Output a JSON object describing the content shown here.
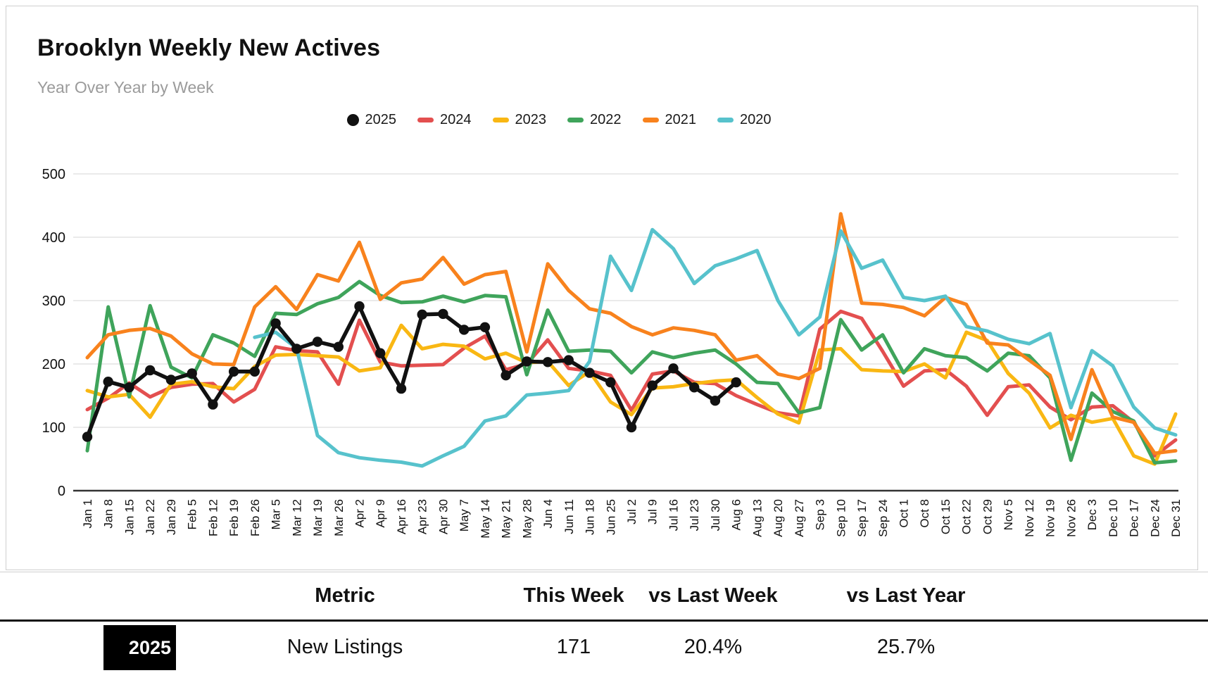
{
  "chart_data": {
    "type": "line",
    "title": "Brooklyn Weekly New Actives",
    "subtitle": "Year Over Year by Week",
    "xlabel": "",
    "ylabel": "",
    "ylim": [
      0,
      500
    ],
    "y_ticks": [
      0,
      100,
      200,
      300,
      400,
      500
    ],
    "grid": true,
    "legend_position": "top",
    "x_labels": [
      "Jan 1",
      "Jan 8",
      "Jan 15",
      "Jan 22",
      "Jan 29",
      "Feb 5",
      "Feb 12",
      "Feb 19",
      "Feb 26",
      "Mar 5",
      "Mar 12",
      "Mar 19",
      "Mar 26",
      "Apr 2",
      "Apr 9",
      "Apr 16",
      "Apr 23",
      "Apr 30",
      "May 7",
      "May 14",
      "May 21",
      "May 28",
      "Jun 4",
      "Jun 11",
      "Jun 18",
      "Jun 25",
      "Jul 2",
      "Jul 9",
      "Jul 16",
      "Jul 23",
      "Jul 30",
      "Aug 6",
      "Aug 13",
      "Aug 20",
      "Aug 27",
      "Sep 3",
      "Sep 10",
      "Sep 17",
      "Sep 24",
      "Oct 1",
      "Oct 8",
      "Oct 15",
      "Oct 22",
      "Oct 29",
      "Nov 5",
      "Nov 12",
      "Nov 19",
      "Nov 26",
      "Dec 3",
      "Dec 10",
      "Dec 17",
      "Dec 24",
      "Dec 31"
    ],
    "series": [
      {
        "name": "2025",
        "color": "#111111",
        "marker": "circle",
        "values": [
          85,
          172,
          163,
          190,
          175,
          185,
          136,
          188,
          188,
          264,
          224,
          235,
          227,
          291,
          217,
          161,
          278,
          279,
          254,
          258,
          182,
          204,
          203,
          206,
          186,
          171,
          100,
          166,
          193,
          163,
          142,
          171
        ]
      },
      {
        "name": "2024",
        "color": "#E34F4F",
        "marker": "dash",
        "values": [
          128,
          146,
          170,
          148,
          163,
          168,
          169,
          140,
          160,
          227,
          221,
          219,
          168,
          269,
          203,
          197,
          198,
          199,
          225,
          244,
          191,
          200,
          238,
          193,
          189,
          182,
          127,
          184,
          189,
          171,
          169,
          150,
          136,
          123,
          118,
          255,
          283,
          272,
          220,
          165,
          189,
          191,
          165,
          119,
          164,
          167,
          132,
          112,
          132,
          134,
          108,
          55,
          80
        ]
      },
      {
        "name": "2023",
        "color": "#F9B713",
        "marker": "dash",
        "values": [
          158,
          148,
          152,
          116,
          168,
          172,
          164,
          161,
          196,
          214,
          215,
          213,
          211,
          189,
          194,
          261,
          224,
          231,
          228,
          208,
          217,
          202,
          204,
          166,
          188,
          140,
          120,
          162,
          164,
          169,
          173,
          175,
          147,
          121,
          107,
          222,
          224,
          191,
          189,
          188,
          200,
          178,
          250,
          237,
          185,
          154,
          99,
          119,
          108,
          114,
          55,
          42,
          121
        ]
      },
      {
        "name": "2022",
        "color": "#3FA45B",
        "marker": "dash",
        "values": [
          63,
          290,
          148,
          292,
          195,
          178,
          246,
          233,
          212,
          280,
          278,
          295,
          305,
          330,
          308,
          297,
          298,
          307,
          298,
          308,
          306,
          183,
          285,
          220,
          222,
          220,
          186,
          219,
          210,
          217,
          222,
          200,
          171,
          169,
          123,
          131,
          270,
          222,
          246,
          186,
          224,
          213,
          210,
          189,
          217,
          213,
          178,
          48,
          154,
          125,
          110,
          44,
          47
        ]
      },
      {
        "name": "2021",
        "color": "#F8821D",
        "marker": "dash",
        "values": [
          210,
          246,
          253,
          256,
          244,
          216,
          200,
          199,
          290,
          322,
          286,
          341,
          331,
          392,
          302,
          328,
          334,
          368,
          326,
          341,
          346,
          219,
          358,
          316,
          287,
          280,
          259,
          246,
          257,
          253,
          246,
          206,
          213,
          184,
          177,
          193,
          437,
          296,
          294,
          289,
          276,
          305,
          294,
          233,
          230,
          206,
          182,
          81,
          191,
          116,
          108,
          59,
          63
        ]
      },
      {
        "name": "2020",
        "color": "#57C2CC",
        "marker": "dash",
        "values": [
          null,
          null,
          null,
          null,
          null,
          null,
          null,
          null,
          242,
          250,
          225,
          87,
          60,
          52,
          48,
          45,
          39,
          55,
          70,
          110,
          118,
          151,
          154,
          158,
          204,
          370,
          316,
          412,
          382,
          327,
          355,
          366,
          379,
          300,
          246,
          274,
          410,
          351,
          364,
          305,
          300,
          307,
          259,
          252,
          239,
          232,
          248,
          131,
          221,
          197,
          132,
          99,
          88
        ]
      }
    ]
  },
  "table": {
    "headers": [
      "Metric",
      "This Week",
      "vs Last Week",
      "vs Last Year"
    ],
    "rows": [
      {
        "year": "2025",
        "metric": "New Listings",
        "this_week": "171",
        "vs_last_week": "20.4%",
        "vs_last_year": "25.7%"
      }
    ]
  }
}
